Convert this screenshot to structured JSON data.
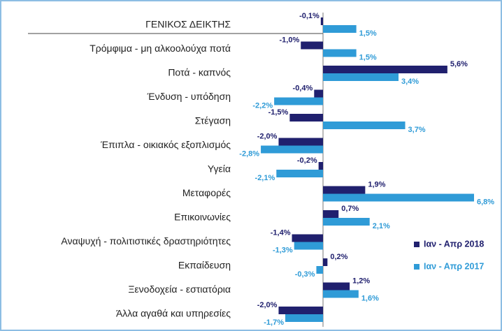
{
  "chart_data": {
    "type": "bar",
    "orientation": "horizontal",
    "categories": [
      "ΓΕΝΙΚΟΣ ΔΕΙΚΤΗΣ",
      "Τρόμφιμα - μη αλκοολούχα ποτά",
      "Ποτά - καπνός",
      "Ένδυση - υπόδηση",
      "Στέγαση",
      "Έπιπλα - οικιακός εξοπλισμός",
      "Υγεία",
      "Μεταφορές",
      "Επικοινωνίες",
      "Αναψυχή - πολιτιστικές δραστηριότητες",
      "Εκπαίδευση",
      "Ξενοδοχεία - εστιατόρια",
      "Άλλα αγαθά και υπηρεσίες"
    ],
    "series": [
      {
        "name": "Ιαν - Απρ 2018",
        "color": "#20206e",
        "values": [
          -0.1,
          -1.0,
          5.6,
          -0.4,
          -1.5,
          -2.0,
          -0.2,
          1.9,
          0.7,
          -1.4,
          0.2,
          1.2,
          -2.0
        ],
        "value_labels": [
          "-0,1%",
          "-1,0%",
          "5,6%",
          "-0,4%",
          "-1,5%",
          "-2,0%",
          "-0,2%",
          "1,9%",
          "0,7%",
          "-1,4%",
          "0,2%",
          "1,2%",
          "-2,0%"
        ]
      },
      {
        "name": "Ιαν - Απρ 2017",
        "color": "#2f9bd7",
        "values": [
          1.5,
          1.5,
          3.4,
          -2.2,
          3.7,
          -2.8,
          -2.1,
          6.8,
          2.1,
          -1.3,
          -0.3,
          1.6,
          -1.7
        ],
        "value_labels": [
          "1,5%",
          "1,5%",
          "3,4%",
          "-2,2%",
          "3,7%",
          "-2,8%",
          "-2,1%",
          "6,8%",
          "2,1%",
          "-1,3%",
          "-0,3%",
          "1,6%",
          "-1,7%"
        ]
      }
    ]
  }
}
